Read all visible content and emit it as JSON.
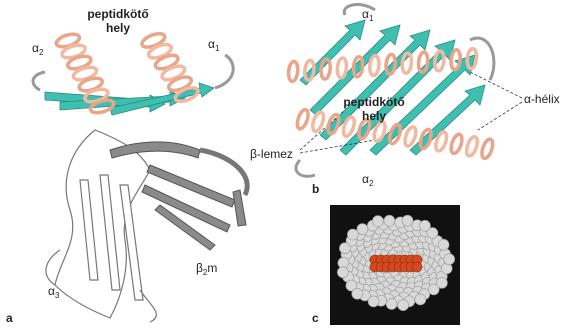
{
  "panel_a": {
    "letter": "a",
    "site_label": [
      "peptidkötő",
      "hely"
    ],
    "helix_left": {
      "symbol": "α",
      "sub": "2"
    },
    "helix_right": {
      "symbol": "α",
      "sub": "1"
    },
    "domain3": {
      "symbol": "α",
      "sub": "3"
    },
    "beta2m": {
      "symbol": "β",
      "sub": "2",
      "tail": "m"
    }
  },
  "panel_b": {
    "letter": "b",
    "site_label": [
      "peptidkötő",
      "hely"
    ],
    "helix_top": {
      "symbol": "α",
      "sub": "1"
    },
    "helix_bottom": {
      "symbol": "α",
      "sub": "2"
    },
    "helix_label": "α-hélix",
    "sheet_label": "β-lemez"
  },
  "panel_c": {
    "letter": "c"
  }
}
